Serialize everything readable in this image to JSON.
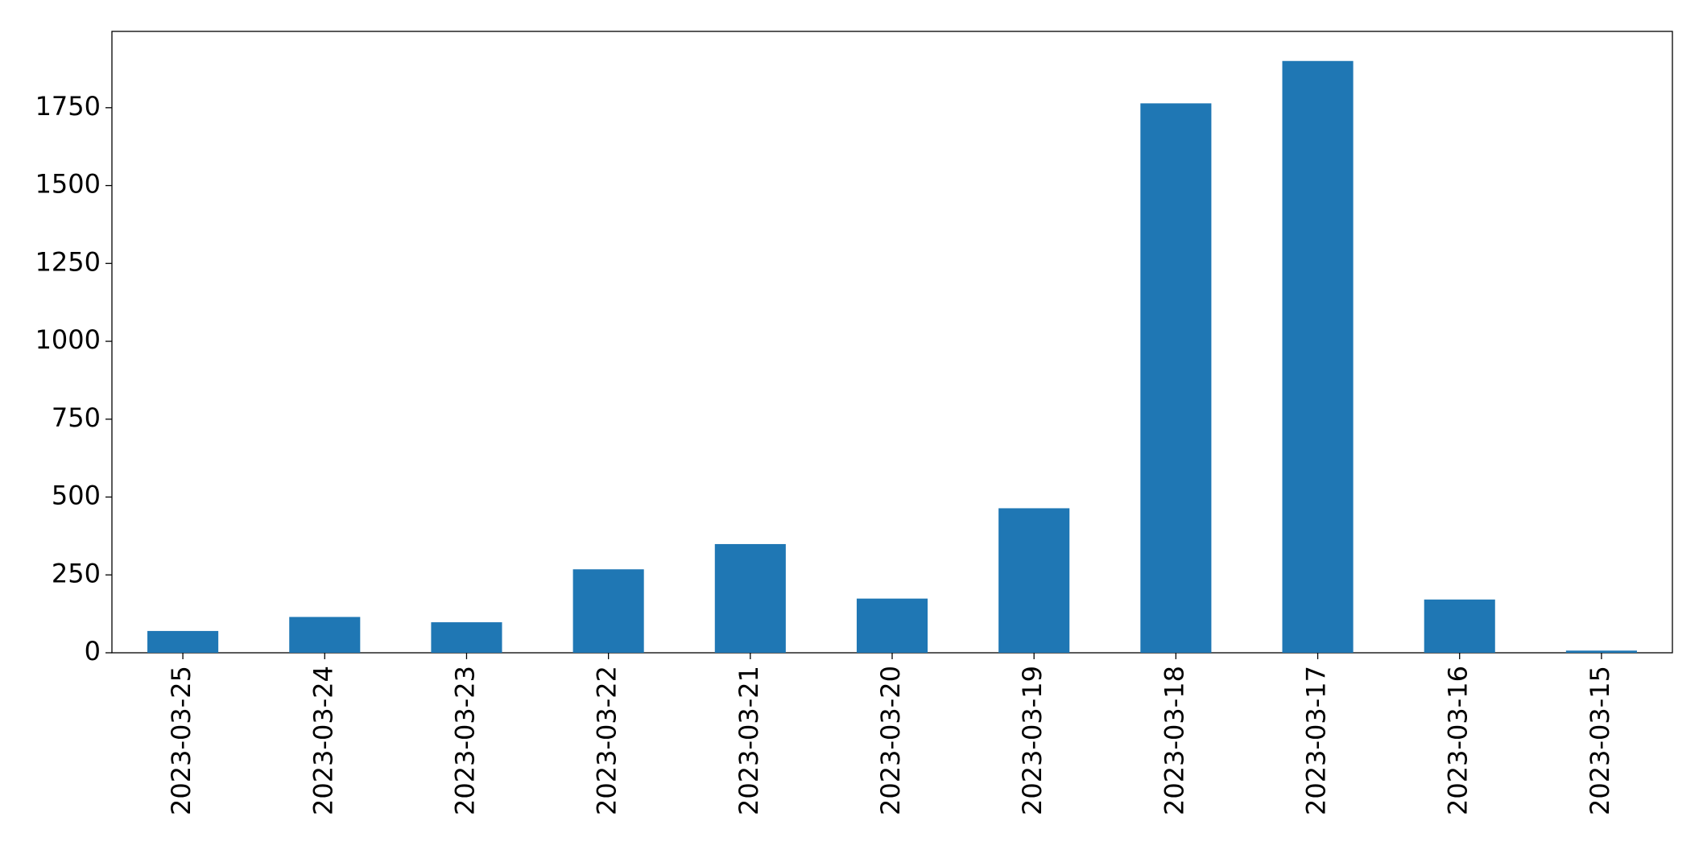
{
  "chart_data": {
    "type": "bar",
    "categories": [
      "2023-03-25",
      "2023-03-24",
      "2023-03-23",
      "2023-03-22",
      "2023-03-21",
      "2023-03-20",
      "2023-03-19",
      "2023-03-18",
      "2023-03-17",
      "2023-03-16",
      "2023-03-15"
    ],
    "values": [
      70,
      115,
      98,
      268,
      349,
      174,
      464,
      1764,
      1900,
      171,
      7
    ],
    "color": "#1f77b4",
    "ylim": [
      0,
      1995
    ],
    "yticks": [
      0,
      250,
      500,
      750,
      1000,
      1250,
      1500,
      1750
    ],
    "grid": false
  }
}
